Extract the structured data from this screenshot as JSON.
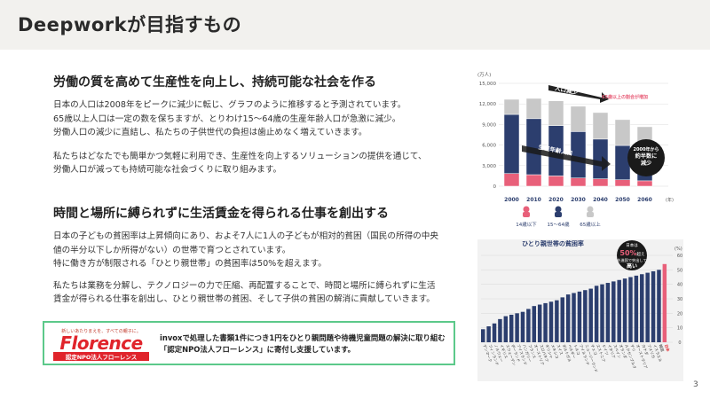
{
  "header": {
    "title": "Deepworkが目指すもの"
  },
  "section1": {
    "title": "労働の質を高めて生産性を向上し、持続可能な社会を作る",
    "para1": "日本の人口は2008年をピークに減少に転じ、グラフのように推移すると予測されています。\n65歳以上人口は一定の数を保ちますが、とりわけ15〜64歳の生産年齢人口が急激に減少。\n労働人口の減少に直結し、私たちの子供世代の負担は歯止めなく増えていきます。",
    "para2": "私たちはどなたでも簡単かつ気軽に利用でき、生産性を向上するソリューションの提供を通じて、\n労働人口が減っても持続可能な社会づくりに取り組みます。"
  },
  "section2": {
    "title": "時間と場所に縛られずに生活賃金を得られる仕事を創出する",
    "para1": "日本の子どもの貧困率は上昇傾向にあり、およそ7人に1人の子どもが相対的貧困（国民の所得の中央\n値の半分以下しか所得がない）の世帯で育つとされています。\n特に働き方が制限される「ひとり親世帯」の貧困率は50%を超えます。",
    "para2": "私たちは業務を分解し、テクノロジーの力で圧縮、再配置することで、時間と場所に縛られずに生活\n賃金が得られる仕事を創出し、ひとり親世帯の貧困、そして子供の貧困の解消に貢献していきます。"
  },
  "florence": {
    "tagline": "新しいあたりまえを、すべての親子に。",
    "name": "Florence",
    "subname": "認定NPO法人フローレンス",
    "text": "invoxで処理した書類1件につき1円をひとり親問題や待機児童問題の解決に取り組む\n「認定NPO法人フローレンス」に寄付し支援しています。"
  },
  "page_number": "3",
  "colors": {
    "navy": "#2c3e6e",
    "grey": "#c8c8c8",
    "pink": "#e8607a",
    "accent_red": "#e0242b",
    "green": "#5cc98a"
  },
  "chart_data": [
    {
      "type": "bar",
      "title": "",
      "unit_label": "(万人)",
      "categories": [
        "2000",
        "2010",
        "2020",
        "2030",
        "2040",
        "2050",
        "2060"
      ],
      "x_suffix": "(年)",
      "ylim": [
        0,
        15000
      ],
      "yticks": [
        "15,000",
        "12,000",
        "9,000",
        "6,000",
        "3,000",
        "0"
      ],
      "series": [
        {
          "name": "14歳以下",
          "values": [
            1850,
            1680,
            1500,
            1200,
            1080,
            940,
            790
          ]
        },
        {
          "name": "15〜64歳",
          "values": [
            8620,
            8170,
            7340,
            6770,
            5790,
            5000,
            4420
          ]
        },
        {
          "name": "65歳以上",
          "values": [
            2200,
            2950,
            3610,
            3690,
            3870,
            3770,
            3460
          ]
        }
      ],
      "annotations": {
        "population_decline": "人口減少",
        "elderly_ratio": "65歳以上の割合が増加",
        "working_decline": "生産年齢人口",
        "halving": "2000年から\n約半数に\n減少"
      }
    },
    {
      "type": "bar",
      "title": "ひとり親世帯の貧困率",
      "unit_label": "(%)",
      "ylim": [
        0,
        60
      ],
      "yticks": [
        "60",
        "50",
        "40",
        "30",
        "20",
        "10",
        "0"
      ],
      "categories": [
        "デンマーク",
        "フィンランド",
        "ノルウェー",
        "イギリス",
        "スウェーデン",
        "ポーランド",
        "アイスランド",
        "ハンガリー",
        "フランス",
        "オーストリア",
        "スロバキア",
        "ギリシャ",
        "メキシコ",
        "スイス",
        "ポルトガル",
        "ベルギー",
        "トルコ",
        "アイルランド",
        "ニュージーランド",
        "チェコ",
        "エストニア",
        "ドイツ",
        "イタリア",
        "スペイン",
        "オランダ",
        "ルクセンブルク",
        "チリ",
        "オーストラリア",
        "カナダ",
        "アメリカ",
        "イスラエル",
        "韓国",
        "日本"
      ],
      "values": [
        9,
        11,
        13,
        16,
        18,
        19,
        20,
        21,
        23,
        25,
        26,
        27,
        28,
        29,
        31,
        33,
        34,
        35,
        36,
        37,
        39,
        40,
        41,
        42,
        43,
        44,
        45,
        46,
        47,
        48,
        49,
        50,
        54
      ],
      "highlight": "日本",
      "callout": {
        "line1": "日本は",
        "value": "50%",
        "line2": "超え",
        "line3": "先進国で突出して",
        "line4": "高い"
      }
    }
  ]
}
